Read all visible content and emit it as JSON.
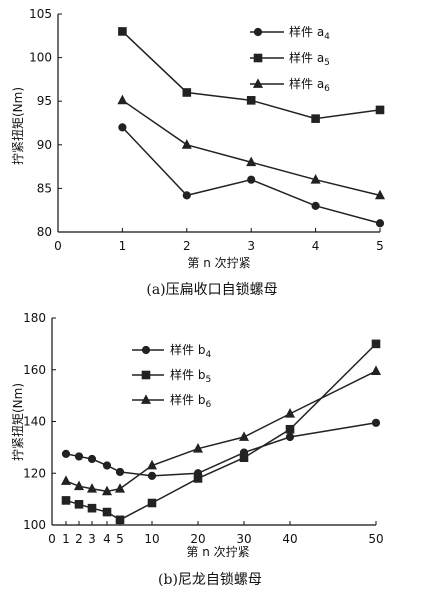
{
  "chart_data": [
    {
      "type": "line",
      "caption": "(a)压扁收口自锁螺母",
      "xlabel": "第 n 次拧紧",
      "ylabel": "拧紧扭矩(Nm)",
      "xlim": [
        0,
        5
      ],
      "ylim": [
        80,
        105
      ],
      "xticks": [
        0,
        1,
        2,
        3,
        4,
        5
      ],
      "yticks": [
        80,
        85,
        90,
        95,
        100,
        105
      ],
      "legend_position": "top-right",
      "series": [
        {
          "name": "样件 a",
          "sub": "4",
          "marker": "circle",
          "x": [
            1,
            2,
            3,
            4,
            5
          ],
          "y": [
            92,
            84.2,
            86,
            83,
            81
          ]
        },
        {
          "name": "样件 a",
          "sub": "5",
          "marker": "square",
          "x": [
            1,
            2,
            3,
            4,
            5
          ],
          "y": [
            103,
            96,
            95.1,
            93,
            94
          ]
        },
        {
          "name": "样件 a",
          "sub": "6",
          "marker": "triangle",
          "x": [
            1,
            2,
            3,
            4,
            5
          ],
          "y": [
            95.1,
            90,
            88,
            86,
            84.2
          ]
        }
      ]
    },
    {
      "type": "line",
      "caption": "(b)尼龙自锁螺母",
      "xlabel": "第 n 次拧紧",
      "ylabel": "拧紧扭矩(Nm)",
      "ylim": [
        100,
        180
      ],
      "xtick_labels": [
        "0",
        "1",
        "2",
        "3",
        "4",
        "5",
        "10",
        "20",
        "30",
        "40",
        "50"
      ],
      "yticks": [
        100,
        120,
        140,
        160,
        180
      ],
      "legend_position": "top-left",
      "series": [
        {
          "name": "样件 b",
          "sub": "4",
          "marker": "circle",
          "x": [
            1,
            2,
            3,
            4,
            5,
            10,
            20,
            30,
            40,
            50
          ],
          "y": [
            127.5,
            126.5,
            125.5,
            123,
            120.5,
            119,
            120,
            128,
            134,
            139.5
          ]
        },
        {
          "name": "样件 b",
          "sub": "5",
          "marker": "square",
          "x": [
            1,
            2,
            3,
            4,
            5,
            10,
            20,
            30,
            40,
            50
          ],
          "y": [
            109.5,
            108,
            106.5,
            105,
            102,
            108.5,
            118,
            126,
            137,
            170
          ]
        },
        {
          "name": "样件 b",
          "sub": "6",
          "marker": "triangle",
          "x": [
            1,
            2,
            3,
            4,
            5,
            10,
            20,
            30,
            40,
            50
          ],
          "y": [
            117,
            115,
            114,
            113,
            114,
            123,
            129.5,
            134,
            143,
            159.5
          ]
        }
      ]
    }
  ]
}
